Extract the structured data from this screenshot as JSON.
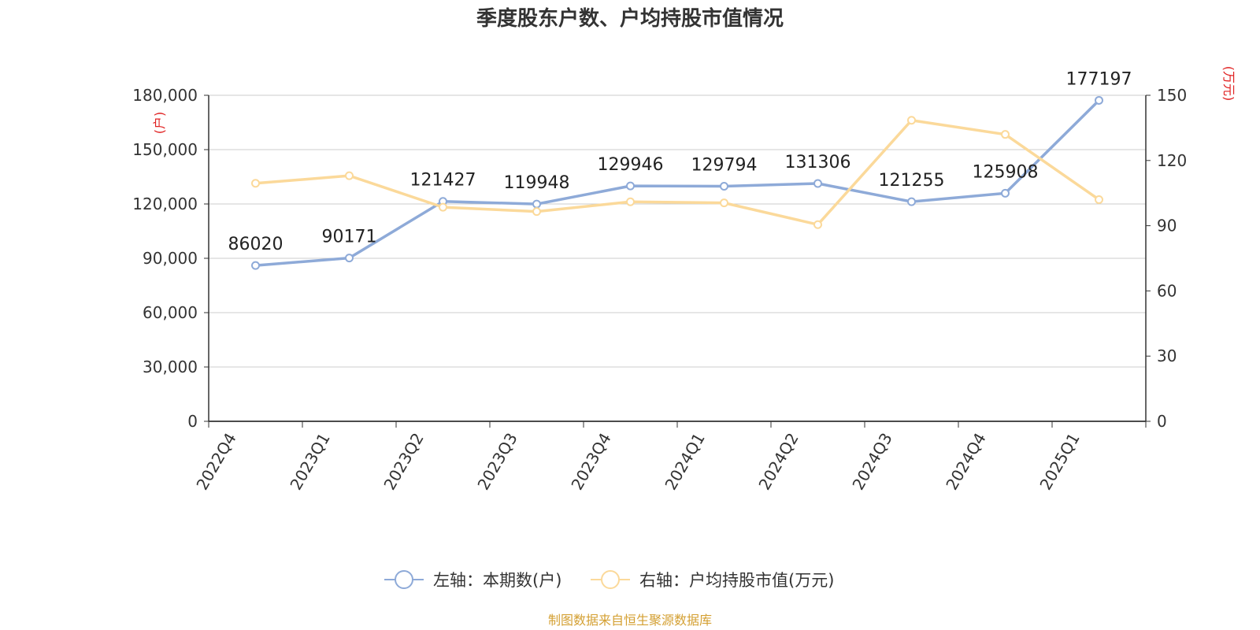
{
  "chart_data": {
    "type": "line",
    "title": "季度股东户数、户均持股市值情况",
    "categories": [
      "2022Q4",
      "2023Q1",
      "2023Q2",
      "2023Q3",
      "2023Q4",
      "2024Q1",
      "2024Q2",
      "2024Q3",
      "2024Q4",
      "2025Q1"
    ],
    "y_left": {
      "unit_label": "(户)",
      "ticks": [
        "0",
        "30,000",
        "60,000",
        "90,000",
        "120,000",
        "150,000",
        "180,000"
      ],
      "range": [
        0,
        180000
      ]
    },
    "y_right": {
      "unit_label": "(万元)",
      "ticks": [
        "0",
        "30",
        "60",
        "90",
        "120",
        "150"
      ],
      "range": [
        0,
        150
      ]
    },
    "grid": true,
    "legend_position": "bottom",
    "series": [
      {
        "name": "左轴：本期数(户)",
        "axis": "left",
        "color": "#8eaad8",
        "values": [
          86020,
          90171,
          121427,
          119948,
          129946,
          129794,
          131306,
          121255,
          125908,
          177197
        ],
        "labels": [
          "86020",
          "90171",
          "121427",
          "119948",
          "129946",
          "129794",
          "131306",
          "121255",
          "125908",
          "177197"
        ]
      },
      {
        "name": "右轴：户均持股市值(万元)",
        "axis": "right",
        "color": "#fbd99a",
        "values": [
          109.5,
          113,
          98.5,
          96.5,
          101,
          100.5,
          90.5,
          138.5,
          132,
          102
        ]
      }
    ]
  },
  "source_note": "制图数据来自恒生聚源数据库"
}
